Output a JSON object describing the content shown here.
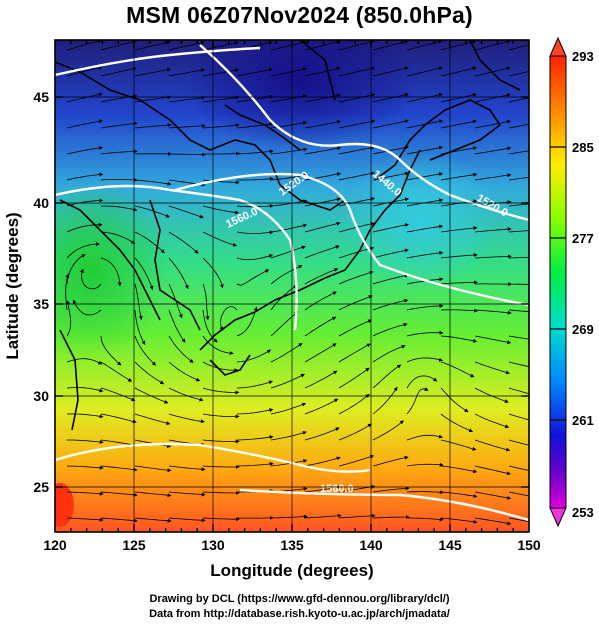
{
  "title": "MSM 06Z07Nov2024 (850.0hPa)",
  "x_axis": {
    "label": "Longitude (degrees)",
    "ticks": [
      "120",
      "125",
      "130",
      "135",
      "140",
      "145",
      "150"
    ]
  },
  "y_axis": {
    "label": "Latitude  (degrees)",
    "ticks": [
      "25",
      "30",
      "35",
      "40",
      "45"
    ]
  },
  "colorbar": {
    "ticks": [
      "293",
      "285",
      "277",
      "269",
      "261",
      "253"
    ],
    "colors": [
      "#ff0080",
      "#8000ff",
      "#0000ff",
      "#00c0ff",
      "#00ffc0",
      "#40ff00",
      "#c0ff00",
      "#ffc000",
      "#ff4000",
      "#ff0000"
    ]
  },
  "contour_labels": {
    "a": "1440.0",
    "b": "1520.0",
    "c": "1560.0",
    "d": "1520.0",
    "e": "1560.0"
  },
  "credits": {
    "line1": "Drawing by DCL (https://www.gfd-dennou.org/library/dcl/)",
    "line2": "Data from http://database.rish.kyoto-u.ac.jp/arch/jmadata/"
  },
  "map_extent": {
    "lon": [
      120,
      150
    ],
    "lat": [
      22.5,
      48
    ]
  }
}
